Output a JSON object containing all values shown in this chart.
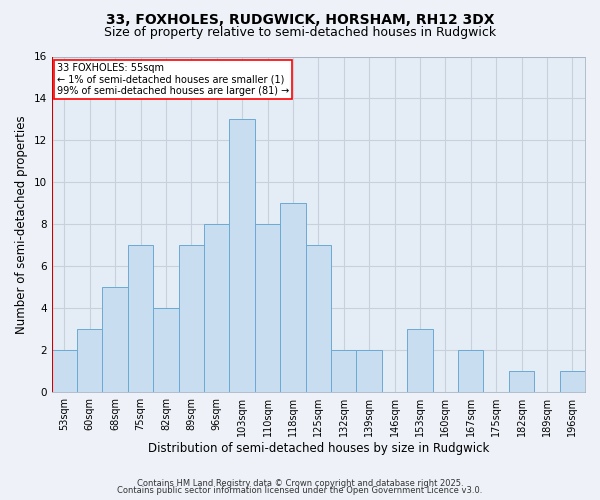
{
  "title": "33, FOXHOLES, RUDGWICK, HORSHAM, RH12 3DX",
  "subtitle": "Size of property relative to semi-detached houses in Rudgwick",
  "xlabel": "Distribution of semi-detached houses by size in Rudgwick",
  "ylabel": "Number of semi-detached properties",
  "categories": [
    "53sqm",
    "60sqm",
    "68sqm",
    "75sqm",
    "82sqm",
    "89sqm",
    "96sqm",
    "103sqm",
    "110sqm",
    "118sqm",
    "125sqm",
    "132sqm",
    "139sqm",
    "146sqm",
    "153sqm",
    "160sqm",
    "167sqm",
    "175sqm",
    "182sqm",
    "189sqm",
    "196sqm"
  ],
  "values": [
    2,
    3,
    5,
    7,
    4,
    7,
    8,
    13,
    8,
    9,
    7,
    2,
    2,
    0,
    3,
    0,
    2,
    0,
    1,
    0,
    1
  ],
  "bar_color": "#c9ddf0",
  "bar_edge_color": "#6aaad4",
  "highlight_color": "#cc0000",
  "ylim": [
    0,
    16
  ],
  "yticks": [
    0,
    2,
    4,
    6,
    8,
    10,
    12,
    14,
    16
  ],
  "annotation_title": "33 FOXHOLES: 55sqm",
  "annotation_line1": "← 1% of semi-detached houses are smaller (1)",
  "annotation_line2": "99% of semi-detached houses are larger (81) →",
  "footnote1": "Contains HM Land Registry data © Crown copyright and database right 2025.",
  "footnote2": "Contains public sector information licensed under the Open Government Licence v3.0.",
  "bg_color": "#eef2f8",
  "plot_bg_color": "#e4ecf5",
  "grid_color": "#c8d0dc",
  "title_fontsize": 10,
  "subtitle_fontsize": 9,
  "tick_fontsize": 7,
  "label_fontsize": 8.5,
  "annotation_fontsize": 7,
  "footnote_fontsize": 6
}
